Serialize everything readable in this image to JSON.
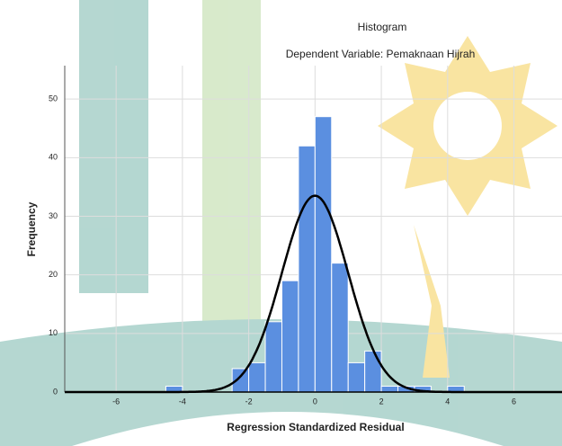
{
  "chart_data": {
    "type": "histogram",
    "title": "Histogram",
    "subtitle": "Dependent Variable: Pemaknaan Hijrah",
    "x_label": "Regression Standardized Residual",
    "y_label": "Frequency",
    "bins": [
      -4.5,
      -4,
      -3.5,
      -3,
      -2.5,
      -2,
      -1.5,
      -1,
      -0.5,
      0,
      0.5,
      1,
      1.5,
      2,
      2.5,
      3,
      3.5,
      4,
      4.5
    ],
    "values": [
      1,
      0,
      0,
      0,
      4,
      5,
      12,
      19,
      42,
      47,
      22,
      5,
      7,
      1,
      1,
      1,
      0,
      1
    ],
    "color": "#5b8fe0",
    "curve": {
      "mean": 0,
      "std_dev": 1,
      "color": "#000000"
    },
    "xlim": [
      -7.55,
      7.45
    ],
    "ylim": [
      0,
      55.7
    ],
    "xticks": [
      -6,
      -4,
      -2,
      0,
      2,
      4,
      6
    ],
    "yticks": [
      0,
      10,
      20,
      30,
      40,
      50
    ],
    "grid": true
  }
}
